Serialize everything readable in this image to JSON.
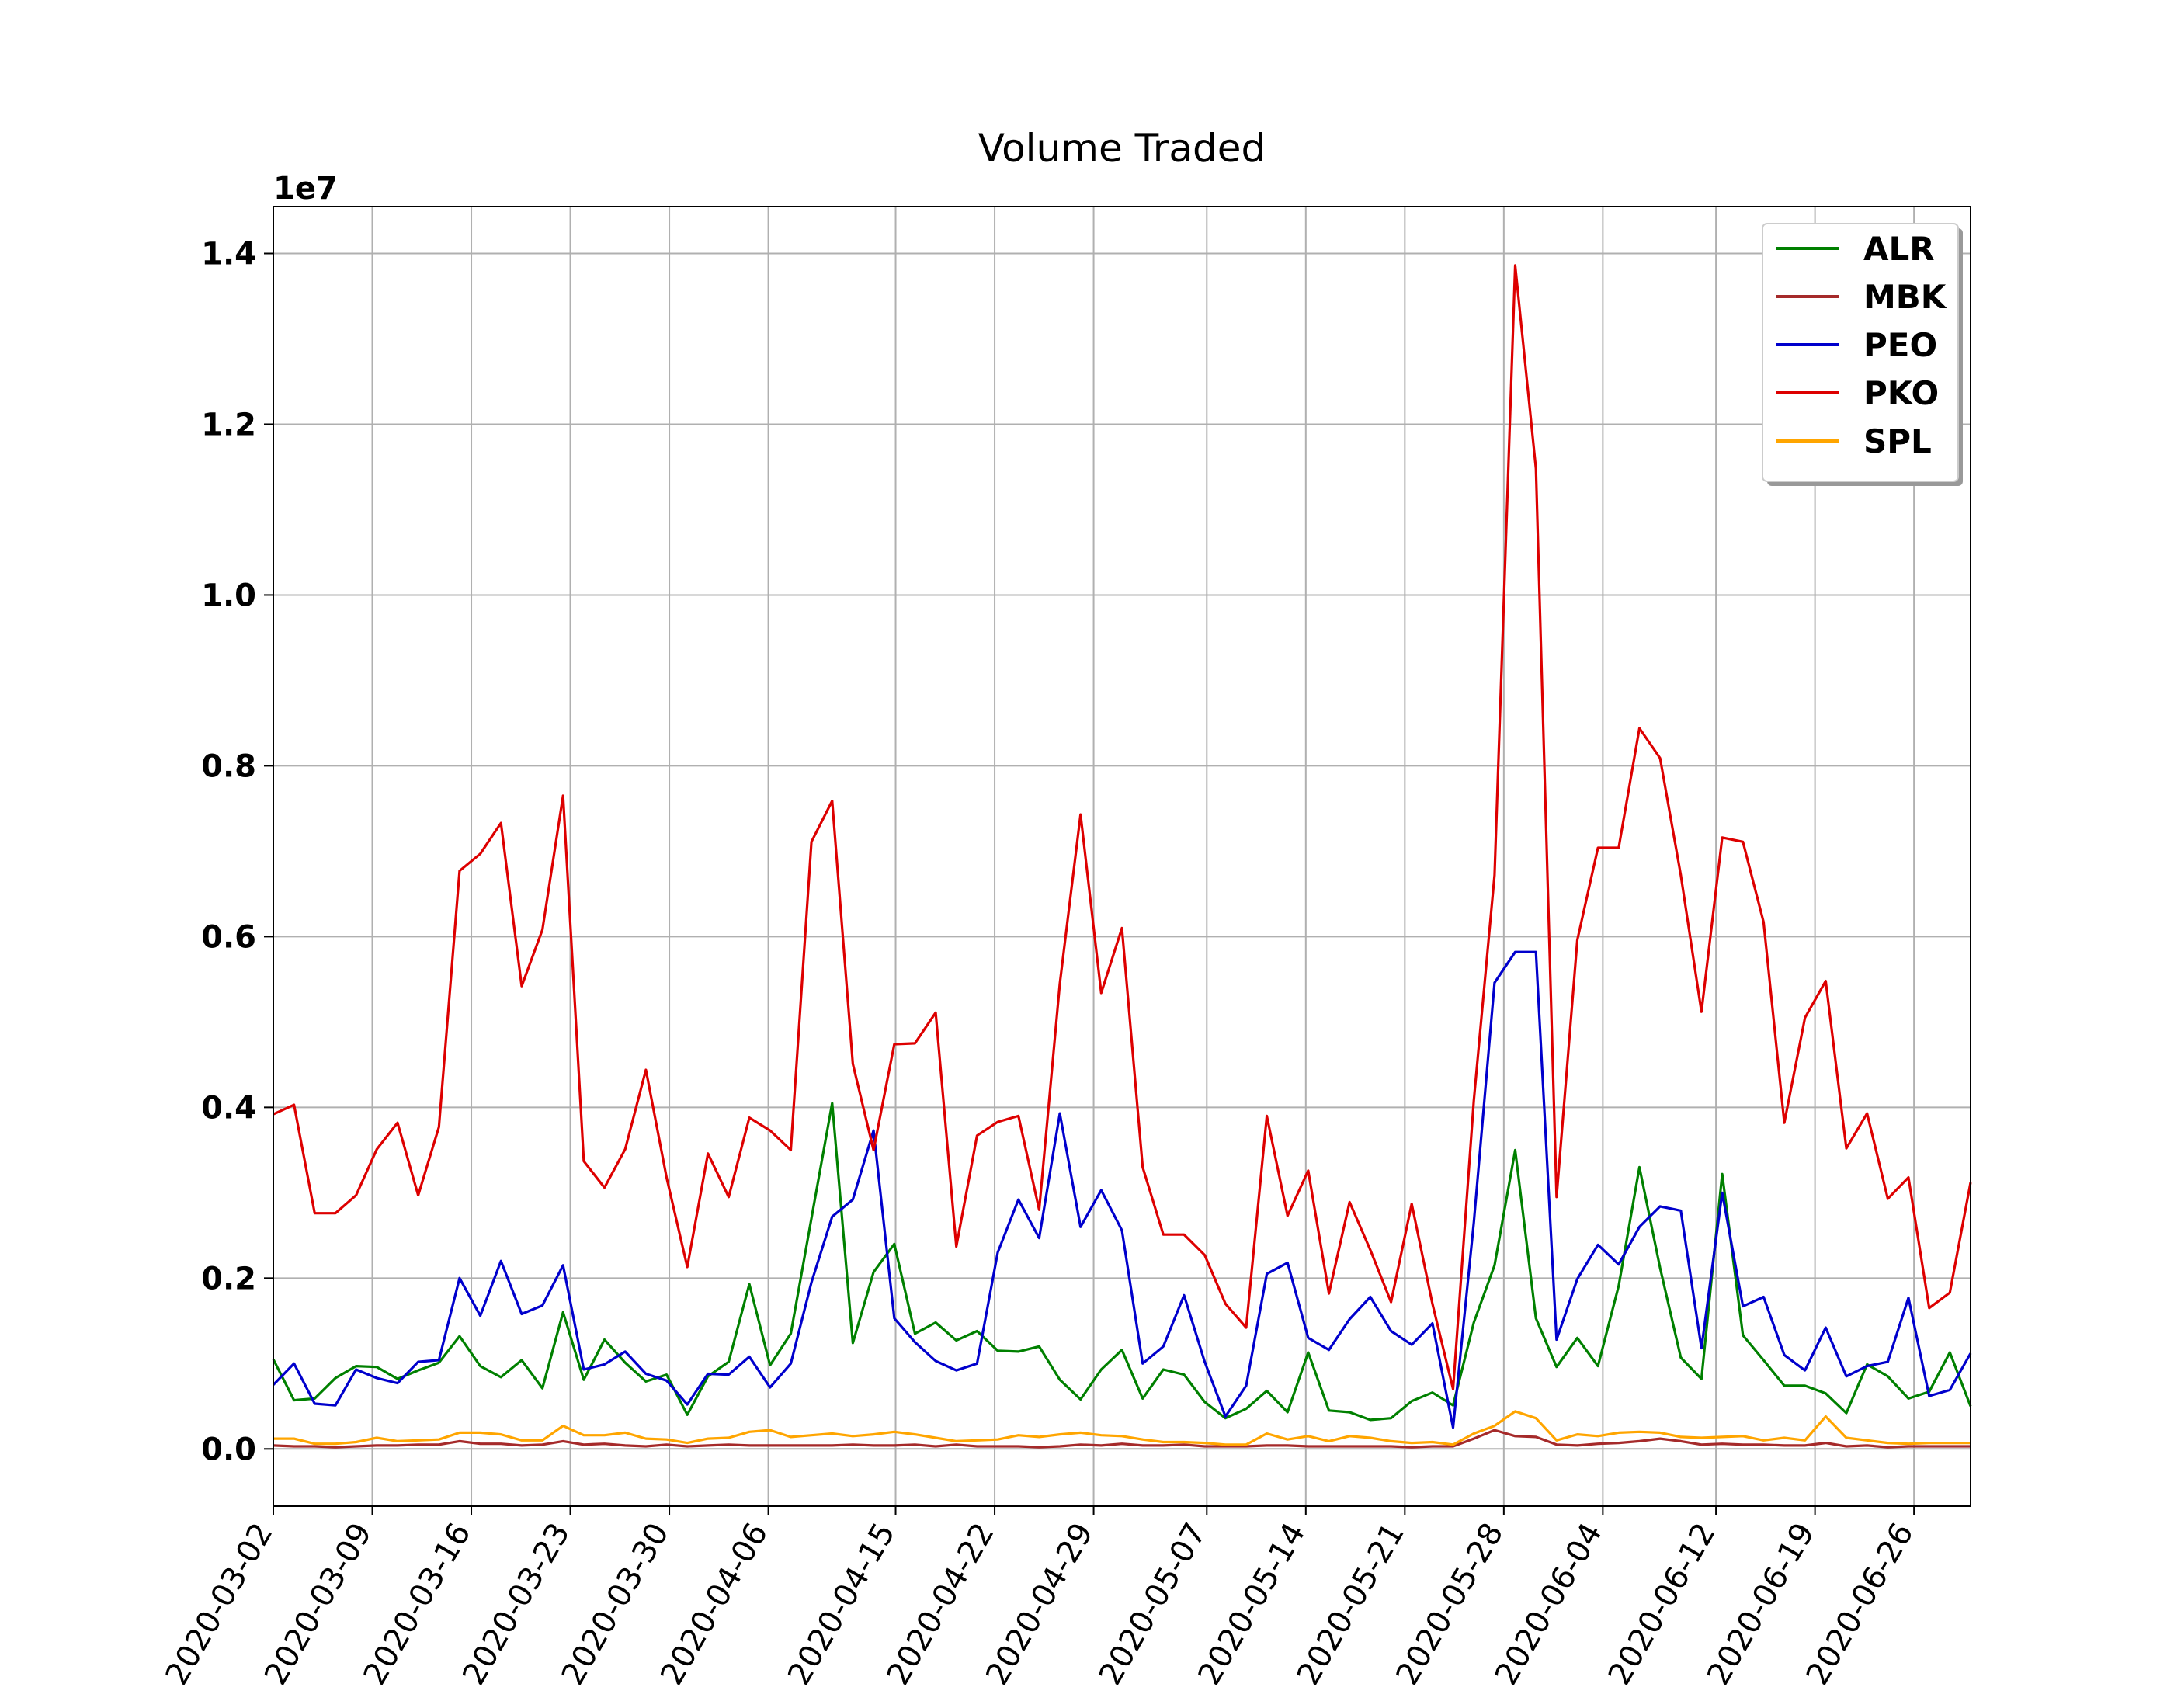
{
  "chart_data": {
    "type": "line",
    "title": "Volume Traded",
    "xlabel": "",
    "ylabel": "",
    "y_offset_label": "1e7",
    "y_scale": 10000000,
    "ylim": [
      -0.067,
      1.455
    ],
    "yticks": [
      0.0,
      0.2,
      0.4,
      0.6,
      0.8,
      1.0,
      1.2,
      1.4
    ],
    "ytick_labels": [
      "0.0",
      "0.2",
      "0.4",
      "0.6",
      "0.8",
      "1.0",
      "1.2",
      "1.4"
    ],
    "x_start": "2020-03-02",
    "x_end": "2020-06-30",
    "xticks": [
      "2020-03-02",
      "2020-03-09",
      "2020-03-16",
      "2020-03-23",
      "2020-03-30",
      "2020-04-06",
      "2020-04-15",
      "2020-04-22",
      "2020-04-29",
      "2020-05-07",
      "2020-05-14",
      "2020-05-21",
      "2020-05-28",
      "2020-06-04",
      "2020-06-12",
      "2020-06-19",
      "2020-06-26"
    ],
    "grid": true,
    "legend_position": "top-right",
    "series": [
      {
        "name": "ALR",
        "color": "#008000",
        "values": [
          0.105,
          0.057,
          0.059,
          0.083,
          0.097,
          0.096,
          0.082,
          0.092,
          0.101,
          0.132,
          0.097,
          0.084,
          0.104,
          0.071,
          0.16,
          0.081,
          0.128,
          0.101,
          0.079,
          0.087,
          0.04,
          0.085,
          0.102,
          0.193,
          0.098,
          0.135,
          0.27,
          0.405,
          0.124,
          0.207,
          0.24,
          0.135,
          0.148,
          0.127,
          0.138,
          0.115,
          0.114,
          0.12,
          0.081,
          0.058,
          0.093,
          0.116,
          0.059,
          0.093,
          0.087,
          0.055,
          0.036,
          0.047,
          0.068,
          0.043,
          0.113,
          0.045,
          0.043,
          0.034,
          0.036,
          0.056,
          0.066,
          0.051,
          0.148,
          0.215,
          0.35,
          0.153,
          0.096,
          0.13,
          0.097,
          0.191,
          0.33,
          0.212,
          0.107,
          0.082,
          0.322,
          0.133,
          0.104,
          0.074,
          0.074,
          0.065,
          0.042,
          0.099,
          0.085,
          0.059,
          0.067,
          0.113,
          0.05
        ]
      },
      {
        "name": "MBK",
        "color": "#a52a2a",
        "values": [
          0.004,
          0.003,
          0.003,
          0.002,
          0.003,
          0.004,
          0.004,
          0.005,
          0.005,
          0.009,
          0.006,
          0.006,
          0.004,
          0.005,
          0.009,
          0.005,
          0.006,
          0.004,
          0.003,
          0.005,
          0.003,
          0.004,
          0.005,
          0.004,
          0.004,
          0.004,
          0.004,
          0.004,
          0.005,
          0.004,
          0.004,
          0.005,
          0.003,
          0.005,
          0.003,
          0.003,
          0.003,
          0.002,
          0.003,
          0.005,
          0.004,
          0.006,
          0.004,
          0.004,
          0.005,
          0.003,
          0.003,
          0.003,
          0.004,
          0.004,
          0.003,
          0.003,
          0.003,
          0.003,
          0.003,
          0.002,
          0.003,
          0.003,
          0.012,
          0.022,
          0.015,
          0.014,
          0.005,
          0.004,
          0.006,
          0.007,
          0.009,
          0.012,
          0.009,
          0.005,
          0.006,
          0.005,
          0.005,
          0.004,
          0.004,
          0.007,
          0.003,
          0.004,
          0.002,
          0.003,
          0.003,
          0.003,
          0.003
        ]
      },
      {
        "name": "PEO",
        "color": "#0000cc",
        "values": [
          0.075,
          0.1,
          0.053,
          0.051,
          0.093,
          0.083,
          0.077,
          0.102,
          0.104,
          0.2,
          0.156,
          0.22,
          0.158,
          0.168,
          0.215,
          0.093,
          0.099,
          0.114,
          0.088,
          0.08,
          0.052,
          0.088,
          0.087,
          0.108,
          0.072,
          0.1,
          0.195,
          0.272,
          0.292,
          0.373,
          0.153,
          0.125,
          0.103,
          0.092,
          0.1,
          0.23,
          0.292,
          0.247,
          0.393,
          0.26,
          0.303,
          0.256,
          0.1,
          0.12,
          0.18,
          0.102,
          0.038,
          0.074,
          0.205,
          0.218,
          0.13,
          0.116,
          0.152,
          0.178,
          0.138,
          0.122,
          0.147,
          0.025,
          0.265,
          0.546,
          0.582,
          0.582,
          0.128,
          0.199,
          0.239,
          0.216,
          0.26,
          0.284,
          0.279,
          0.118,
          0.3,
          0.167,
          0.178,
          0.11,
          0.092,
          0.142,
          0.085,
          0.097,
          0.102,
          0.177,
          0.062,
          0.069,
          0.112
        ]
      },
      {
        "name": "PKO",
        "color": "#dd0000",
        "values": [
          0.392,
          0.403,
          0.276,
          0.276,
          0.297,
          0.351,
          0.382,
          0.297,
          0.377,
          0.677,
          0.697,
          0.733,
          0.542,
          0.608,
          0.765,
          0.337,
          0.306,
          0.351,
          0.444,
          0.318,
          0.213,
          0.346,
          0.295,
          0.388,
          0.373,
          0.35,
          0.711,
          0.759,
          0.451,
          0.35,
          0.474,
          0.475,
          0.511,
          0.237,
          0.367,
          0.383,
          0.39,
          0.28,
          0.545,
          0.743,
          0.534,
          0.61,
          0.33,
          0.251,
          0.251,
          0.227,
          0.17,
          0.142,
          0.39,
          0.273,
          0.326,
          0.182,
          0.289,
          0.233,
          0.172,
          0.287,
          0.17,
          0.07,
          0.408,
          0.672,
          1.386,
          1.148,
          0.295,
          0.596,
          0.704,
          0.704,
          0.844,
          0.809,
          0.672,
          0.512,
          0.716,
          0.711,
          0.617,
          0.382,
          0.505,
          0.548,
          0.352,
          0.393,
          0.293,
          0.318,
          0.165,
          0.183,
          0.312
        ]
      },
      {
        "name": "SPL",
        "color": "#ffa500",
        "values": [
          0.012,
          0.012,
          0.006,
          0.006,
          0.008,
          0.013,
          0.009,
          0.01,
          0.011,
          0.019,
          0.019,
          0.017,
          0.01,
          0.01,
          0.027,
          0.016,
          0.016,
          0.019,
          0.012,
          0.011,
          0.007,
          0.012,
          0.013,
          0.02,
          0.022,
          0.014,
          0.016,
          0.018,
          0.015,
          0.017,
          0.02,
          0.017,
          0.013,
          0.009,
          0.01,
          0.011,
          0.016,
          0.014,
          0.017,
          0.019,
          0.016,
          0.015,
          0.011,
          0.008,
          0.008,
          0.007,
          0.005,
          0.005,
          0.018,
          0.011,
          0.015,
          0.009,
          0.015,
          0.013,
          0.009,
          0.007,
          0.008,
          0.005,
          0.018,
          0.027,
          0.044,
          0.036,
          0.01,
          0.017,
          0.015,
          0.019,
          0.02,
          0.019,
          0.014,
          0.013,
          0.014,
          0.015,
          0.01,
          0.013,
          0.01,
          0.038,
          0.013,
          0.01,
          0.007,
          0.006,
          0.007,
          0.007,
          0.007
        ]
      }
    ]
  }
}
